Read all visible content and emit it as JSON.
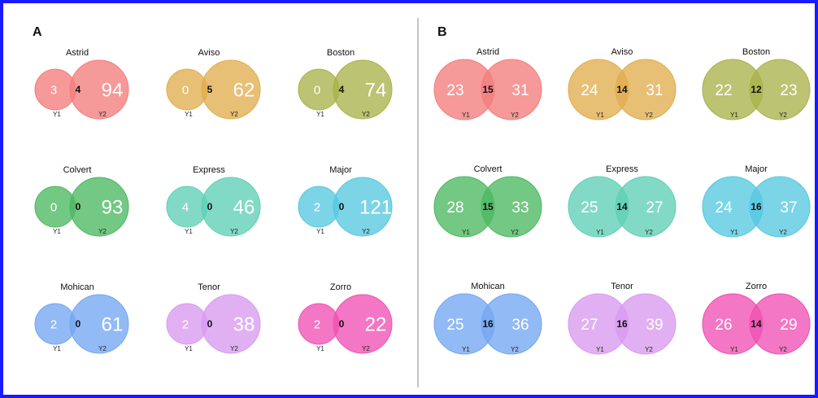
{
  "panels": [
    {
      "label": "A",
      "diagrams": [
        {
          "name": "Astrid",
          "color": "#f47c7c",
          "only_y1": 3,
          "both": 4,
          "only_y2": 94
        },
        {
          "name": "Aviso",
          "color": "#e0ad4e",
          "only_y1": 0,
          "both": 5,
          "only_y2": 62
        },
        {
          "name": "Boston",
          "color": "#a9b24a",
          "only_y1": 0,
          "both": 4,
          "only_y2": 74
        },
        {
          "name": "Colvert",
          "color": "#4cb860",
          "only_y1": 0,
          "both": 0,
          "only_y2": 93
        },
        {
          "name": "Express",
          "color": "#5fd0b6",
          "only_y1": 4,
          "both": 0,
          "only_y2": 46
        },
        {
          "name": "Major",
          "color": "#57c8e0",
          "only_y1": 2,
          "both": 0,
          "only_y2": 121
        },
        {
          "name": "Mohican",
          "color": "#73a6f2",
          "only_y1": 2,
          "both": 0,
          "only_y2": 61
        },
        {
          "name": "Tenor",
          "color": "#d99af0",
          "only_y1": 2,
          "both": 0,
          "only_y2": 38
        },
        {
          "name": "Zorro",
          "color": "#f051b3",
          "only_y1": 2,
          "both": 0,
          "only_y2": 22
        }
      ]
    },
    {
      "label": "B",
      "diagrams": [
        {
          "name": "Astrid",
          "color": "#f47c7c",
          "only_y1": 23,
          "both": 15,
          "only_y2": 31
        },
        {
          "name": "Aviso",
          "color": "#e0ad4e",
          "only_y1": 24,
          "both": 14,
          "only_y2": 31
        },
        {
          "name": "Boston",
          "color": "#a9b24a",
          "only_y1": 22,
          "both": 12,
          "only_y2": 23
        },
        {
          "name": "Colvert",
          "color": "#4cb860",
          "only_y1": 28,
          "both": 15,
          "only_y2": 33
        },
        {
          "name": "Express",
          "color": "#5fd0b6",
          "only_y1": 25,
          "both": 14,
          "only_y2": 27
        },
        {
          "name": "Major",
          "color": "#57c8e0",
          "only_y1": 24,
          "both": 16,
          "only_y2": 37
        },
        {
          "name": "Mohican",
          "color": "#73a6f2",
          "only_y1": 25,
          "both": 16,
          "only_y2": 36
        },
        {
          "name": "Tenor",
          "color": "#d99af0",
          "only_y1": 27,
          "both": 16,
          "only_y2": 39
        },
        {
          "name": "Zorro",
          "color": "#f051b3",
          "only_y1": 26,
          "both": 14,
          "only_y2": 29
        }
      ]
    }
  ],
  "set_labels": {
    "y1": "Y1",
    "y2": "Y2"
  }
}
